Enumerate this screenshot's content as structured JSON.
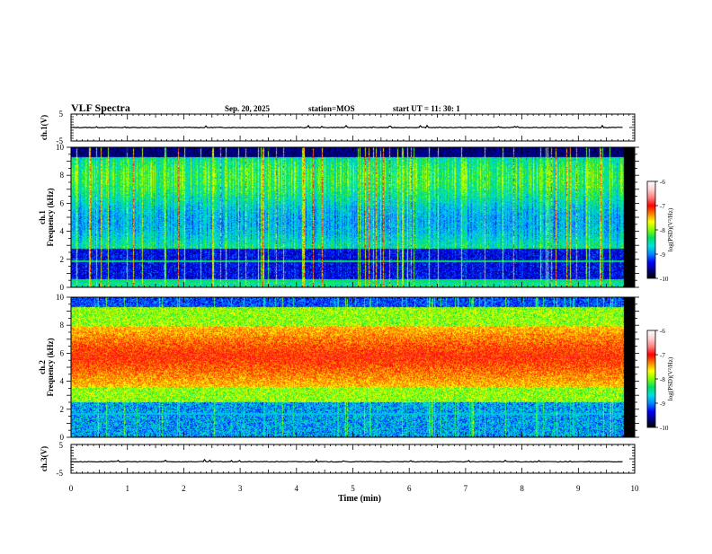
{
  "header": {
    "title": "VLF Spectra",
    "date": "Sep. 20, 2025",
    "station": "station=MOS",
    "start": "start UT =  11: 30: 1"
  },
  "chart_data": [
    {
      "type": "line",
      "name": "ch1-waveform",
      "ylabel": "ch.1(V)",
      "ylim": [
        -5,
        5
      ],
      "yticks": [
        5,
        -5
      ],
      "xlim": [
        0,
        10
      ],
      "baseline_value": 0,
      "grid": false
    },
    {
      "type": "heatmap",
      "name": "ch1-spectrogram",
      "ylabel": "ch.1\nFrequency (kHz)",
      "ylim": [
        0,
        10
      ],
      "yticks": [
        0,
        2,
        4,
        6,
        8,
        10
      ],
      "xlim": [
        0,
        10
      ],
      "x_end_min": 9.8,
      "colorbar": {
        "label": "log(PSD)(V²/Hz)",
        "range": [
          -10,
          -6
        ],
        "ticks": [
          -6,
          -7,
          -8,
          -9,
          -10
        ]
      },
      "grid": false
    },
    {
      "type": "heatmap",
      "name": "ch2-spectrogram",
      "ylabel": "ch.2\nFrequency (kHz)",
      "ylim": [
        0,
        10
      ],
      "yticks": [
        0,
        2,
        4,
        6,
        8,
        10
      ],
      "xlim": [
        0,
        10
      ],
      "x_end_min": 9.8,
      "colorbar": {
        "label": "log(PSD)(V²/Hz)",
        "range": [
          -10,
          -6
        ],
        "ticks": [
          -6,
          -7,
          -8,
          -9,
          -10
        ]
      },
      "grid": false
    },
    {
      "type": "line",
      "name": "ch3-waveform",
      "ylabel": "ch.3(V)",
      "ylim": [
        -5,
        5
      ],
      "yticks": [
        5,
        -5
      ],
      "xlim": [
        0,
        10
      ],
      "xlabel": "Time (min)",
      "xticks": [
        0,
        1,
        2,
        3,
        4,
        5,
        6,
        7,
        8,
        9,
        10
      ],
      "baseline_value": -1,
      "grid": false
    }
  ],
  "colors": {
    "axis": "#000000",
    "colormap": [
      "#000000",
      "#000080",
      "#0000ff",
      "#0088ff",
      "#00e0e0",
      "#00e060",
      "#80ff00",
      "#ffff00",
      "#ff8000",
      "#ff0000",
      "#ff8080",
      "#ffd0d0",
      "#ffffff"
    ]
  }
}
